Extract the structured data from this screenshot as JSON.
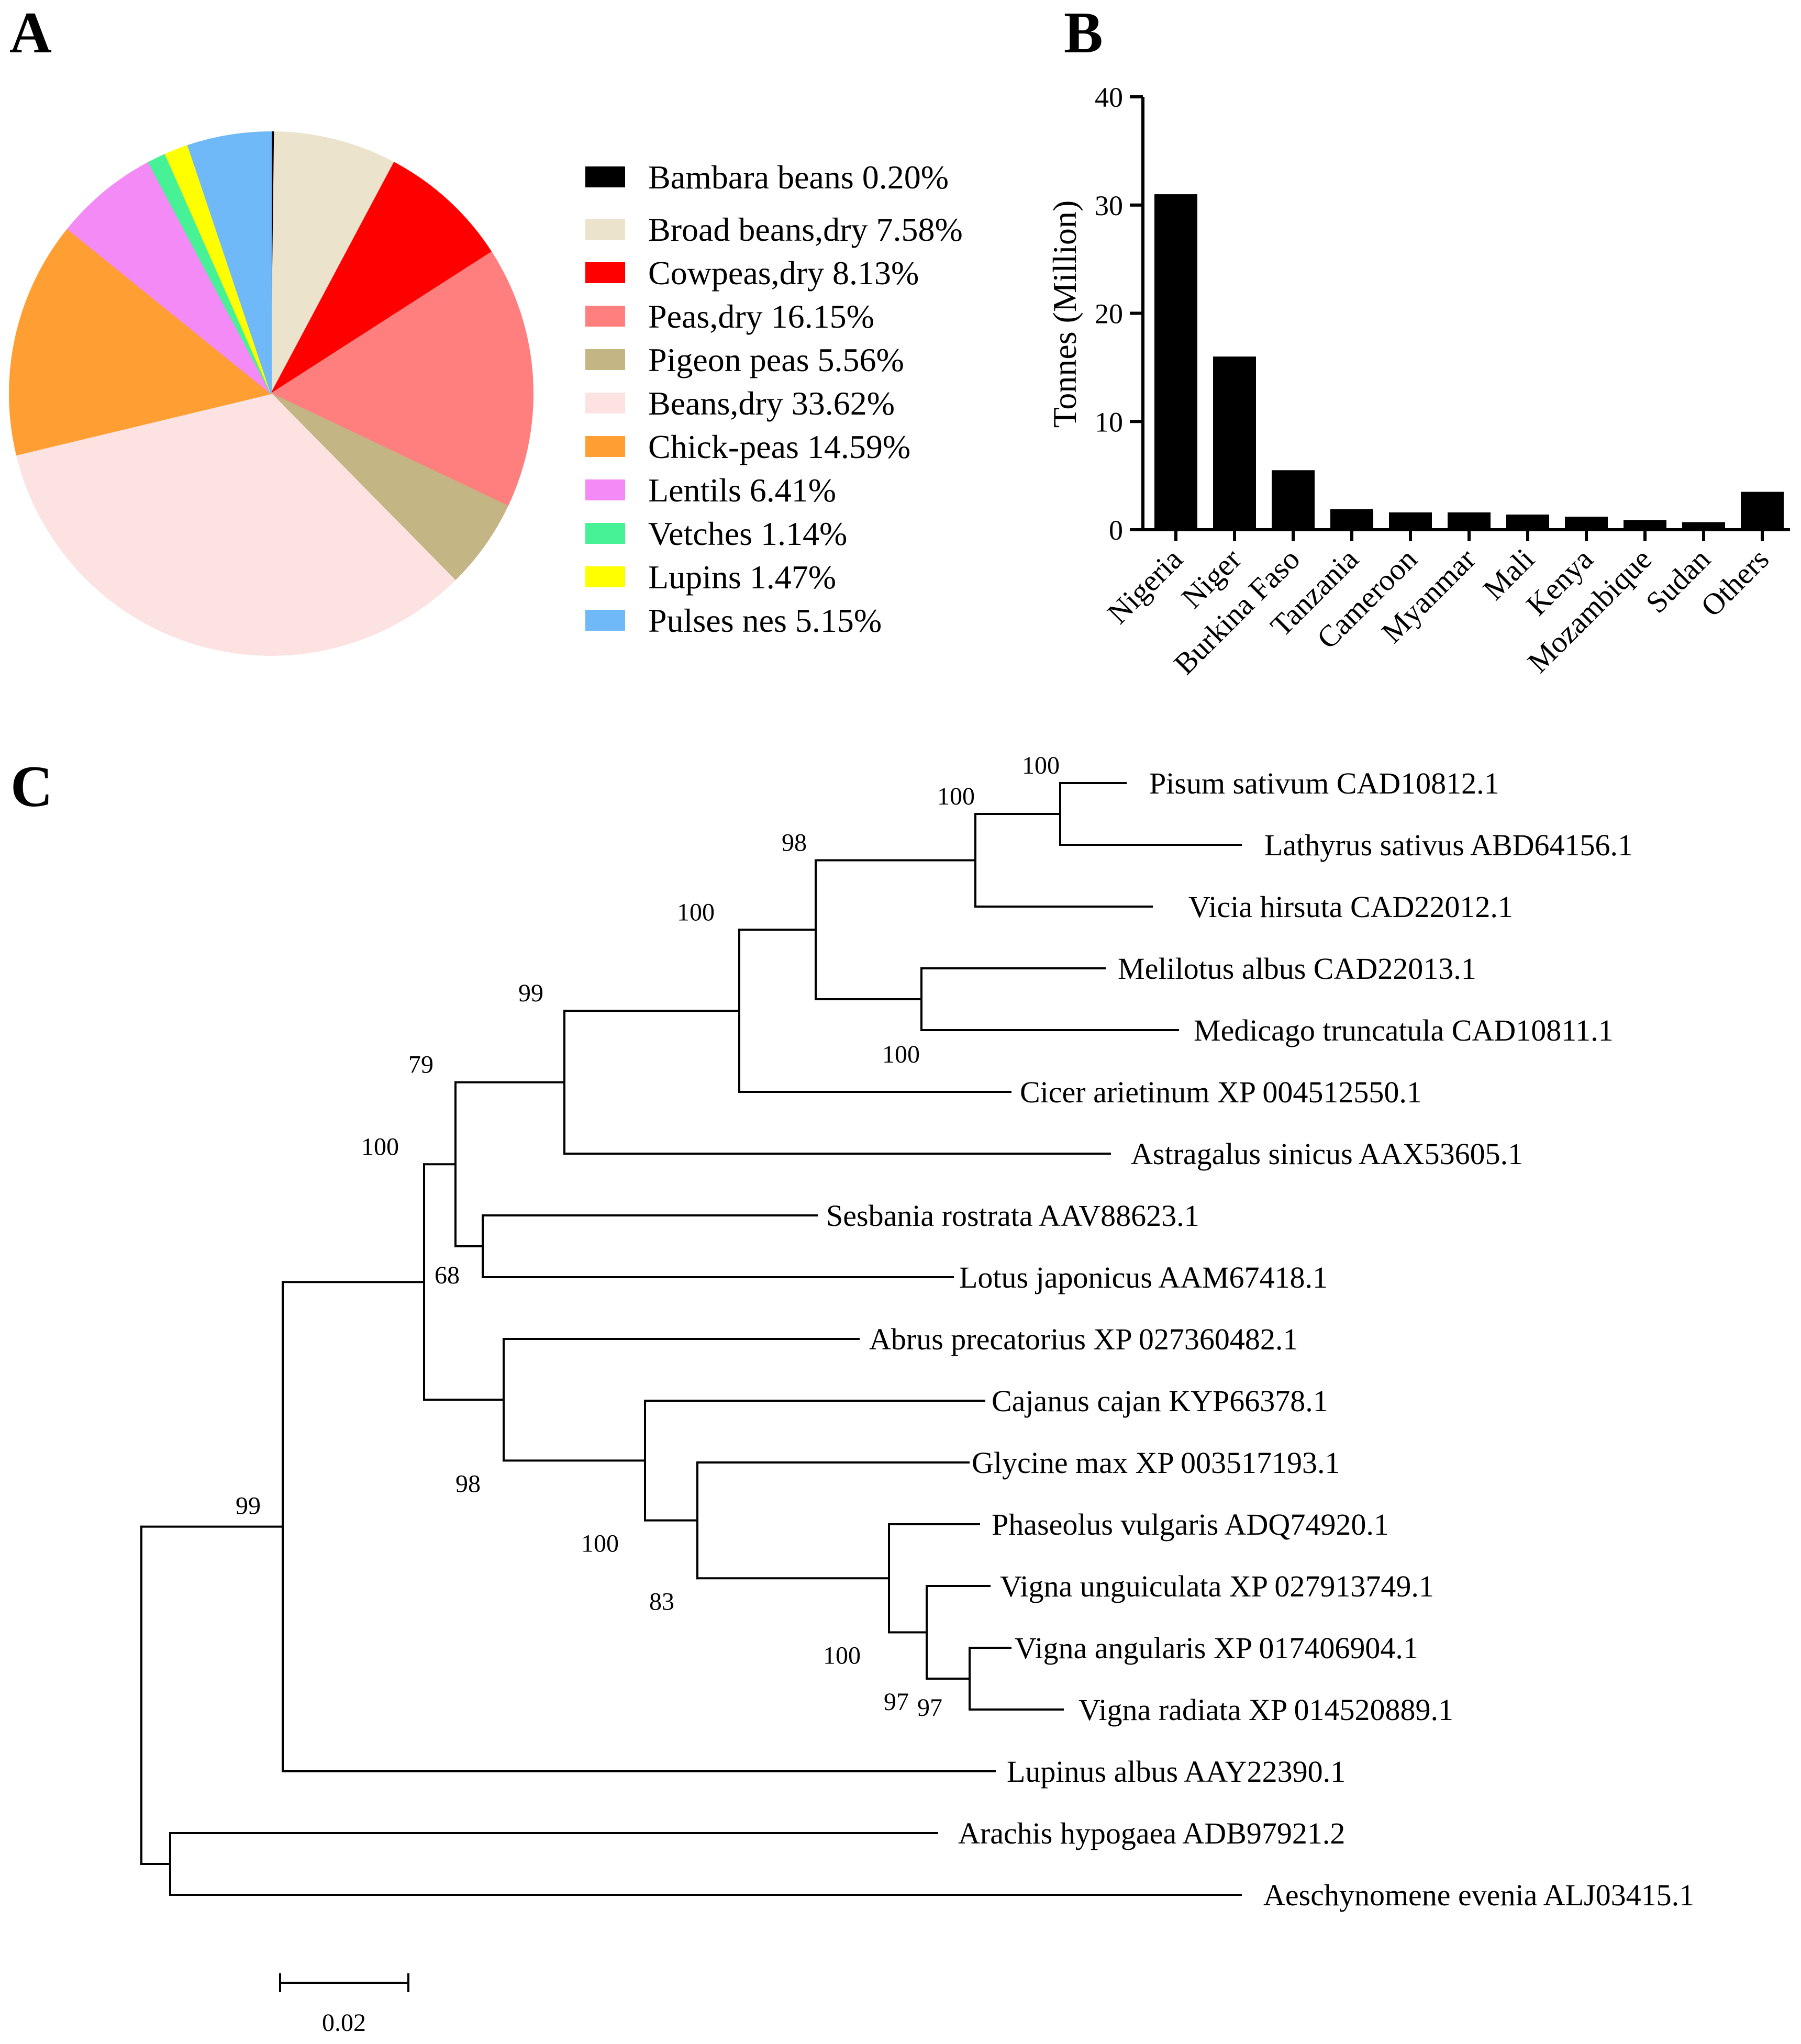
{
  "panels": {
    "a": "A",
    "b": "B",
    "c": "C"
  },
  "chart_data": [
    {
      "type": "pie",
      "panel": "A",
      "slices": [
        {
          "label": "Bambara beans 0.20%",
          "value": 0.2,
          "color": "#000000"
        },
        {
          "label": "Broad beans,dry 7.58%",
          "value": 7.58,
          "color": "#ebe3cb"
        },
        {
          "label": "Cowpeas,dry 8.13%",
          "value": 8.13,
          "color": "#ff0000"
        },
        {
          "label": "Peas,dry 16.15%",
          "value": 16.15,
          "color": "#ff7f7f"
        },
        {
          "label": "Pigeon peas 5.56%",
          "value": 5.56,
          "color": "#c4b585"
        },
        {
          "label": "Beans,dry 33.62%",
          "value": 33.62,
          "color": "#fde2e2"
        },
        {
          "label": "Chick-peas 14.59%",
          "value": 14.59,
          "color": "#ff9f33"
        },
        {
          "label": "Lentils 6.41%",
          "value": 6.41,
          "color": "#f38af5"
        },
        {
          "label": "Vetches 1.14%",
          "value": 1.14,
          "color": "#47f195"
        },
        {
          "label": "Lupins 1.47%",
          "value": 1.47,
          "color": "#ffff00"
        },
        {
          "label": "Pulses nes 5.15%",
          "value": 5.15,
          "color": "#6fb9f8"
        }
      ],
      "legend": "right"
    },
    {
      "type": "bar",
      "panel": "B",
      "categories": [
        "Nigeria",
        "Niger",
        "Burkina Faso",
        "Tanzania",
        "Cameroon",
        "Myanmar",
        "Mali",
        "Kenya",
        "Mozambique",
        "Sudan",
        "Others"
      ],
      "values": [
        31.0,
        16.0,
        5.5,
        1.9,
        1.6,
        1.6,
        1.4,
        1.2,
        0.9,
        0.7,
        3.5
      ],
      "ylabel": "Tonnes (Million)",
      "ylim": [
        0,
        40
      ],
      "yticks": [
        0,
        10,
        20,
        30,
        40
      ],
      "bar_color": "#000000"
    },
    {
      "type": "tree",
      "panel": "C",
      "taxa": [
        "Pisum sativum CAD10812.1",
        "Lathyrus sativus ABD64156.1",
        "Vicia hirsuta CAD22012.1",
        "Melilotus albus CAD22013.1",
        "Medicago truncatula CAD10811.1",
        "Cicer arietinum XP 004512550.1",
        "Astragalus sinicus AAX53605.1",
        "Sesbania rostrata AAV88623.1",
        "Lotus japonicus AAM67418.1",
        "Abrus precatorius XP 027360482.1",
        "Cajanus cajan KYP66378.1",
        "Glycine max XP 003517193.1",
        "Phaseolus vulgaris ADQ74920.1",
        "Vigna unguiculata XP 027913749.1",
        "Vigna angularis XP 017406904.1",
        "Vigna radiata XP 014520889.1",
        "Lupinus albus AAY22390.1",
        "Arachis hypogaea ADB97921.2",
        "Aeschynomene evenia ALJ03415.1"
      ],
      "bootstrap": [
        "100",
        "100",
        "98",
        "100",
        "100",
        "99",
        "79",
        "68",
        "100",
        "98",
        "100",
        "83",
        "100",
        "97",
        "97",
        "99"
      ],
      "scale_bar": "0.02"
    }
  ]
}
